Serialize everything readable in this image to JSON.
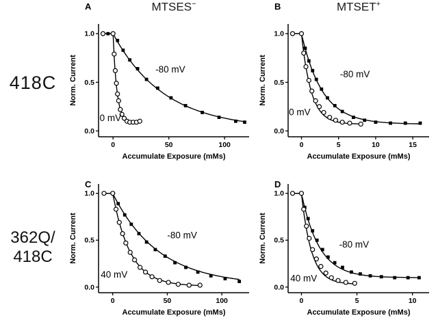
{
  "figure": {
    "row_labels": [
      {
        "text": "418C"
      },
      {
        "line1": "362Q/",
        "line2": "418C"
      }
    ]
  },
  "chart_data": [
    {
      "panel_letter": "A",
      "title": "MTSES",
      "title_sup": "−",
      "type": "scatter",
      "xlabel": "Accumulate Exposure (mMs)",
      "ylabel": "Norm. Current",
      "xlim": [
        -13,
        122
      ],
      "ylim": [
        -0.06,
        1.1
      ],
      "xticks": [
        0,
        50,
        100
      ],
      "yticks": [
        0,
        0.5,
        1
      ],
      "yticklabels": [
        "0.0",
        "0.5",
        "1.0"
      ],
      "grid": false,
      "series": [
        {
          "name": "-80 mV",
          "marker": "filled-square",
          "fit": {
            "tau": 46,
            "plateau": 0.02
          },
          "points": [
            [
              -9,
              1.0
            ],
            [
              -4.5,
              1.0
            ],
            [
              0,
              1.0
            ],
            [
              4,
              0.93
            ],
            [
              9,
              0.83
            ],
            [
              15,
              0.73
            ],
            [
              22,
              0.64
            ],
            [
              30,
              0.53
            ],
            [
              40,
              0.44
            ],
            [
              52,
              0.34
            ],
            [
              65,
              0.26
            ],
            [
              80,
              0.19
            ],
            [
              95,
              0.14
            ],
            [
              110,
              0.1
            ],
            [
              118,
              0.09
            ]
          ]
        },
        {
          "name": "0 mV",
          "marker": "open-circle",
          "fit": {
            "tau": 3.5,
            "plateau": 0.08
          },
          "points": [
            [
              -9,
              1.0
            ],
            [
              0,
              1.0
            ],
            [
              1,
              0.79
            ],
            [
              2,
              0.62
            ],
            [
              3,
              0.49
            ],
            [
              4,
              0.38
            ],
            [
              5,
              0.31
            ],
            [
              6.5,
              0.22
            ],
            [
              8,
              0.17
            ],
            [
              10,
              0.13
            ],
            [
              12.5,
              0.1
            ],
            [
              15,
              0.09
            ],
            [
              18,
              0.09
            ],
            [
              21,
              0.09
            ],
            [
              24,
              0.1
            ]
          ]
        }
      ],
      "annotations": [
        {
          "text": "-80 mV",
          "x": 38,
          "y": 0.6
        },
        {
          "text": "0 mV",
          "x": -12,
          "y": 0.1
        }
      ]
    },
    {
      "panel_letter": "B",
      "title": "MTSET",
      "title_sup": "+",
      "type": "scatter",
      "xlabel": "Accumulate Exposure (mMs)",
      "ylabel": "Norm. Current",
      "xlim": [
        -1.8,
        17.2
      ],
      "ylim": [
        -0.06,
        1.1
      ],
      "xticks": [
        0,
        5,
        10,
        15
      ],
      "yticks": [
        0,
        0.5,
        1
      ],
      "yticklabels": [
        "0.0",
        "0.5",
        "1.0"
      ],
      "grid": false,
      "series": [
        {
          "name": "-80 mV",
          "marker": "filled-square",
          "fit": {
            "tau": 2.8,
            "plateau": 0.07
          },
          "points": [
            [
              -1.2,
              1.0
            ],
            [
              0,
              1.0
            ],
            [
              0.5,
              0.85
            ],
            [
              1,
              0.72
            ],
            [
              1.5,
              0.62
            ],
            [
              2,
              0.53
            ],
            [
              2.7,
              0.43
            ],
            [
              3.5,
              0.34
            ],
            [
              4.5,
              0.26
            ],
            [
              5.5,
              0.2
            ],
            [
              7,
              0.14
            ],
            [
              8.5,
              0.11
            ],
            [
              10,
              0.09
            ],
            [
              12,
              0.08
            ],
            [
              14,
              0.08
            ],
            [
              16,
              0.08
            ]
          ]
        },
        {
          "name": "0 mV",
          "marker": "open-circle",
          "fit": {
            "tau": 1.3,
            "plateau": 0.07
          },
          "points": [
            [
              -1.2,
              1.0
            ],
            [
              0,
              1.0
            ],
            [
              0.3,
              0.8
            ],
            [
              0.6,
              0.66
            ],
            [
              1,
              0.52
            ],
            [
              1.4,
              0.41
            ],
            [
              1.9,
              0.31
            ],
            [
              2.4,
              0.25
            ],
            [
              3,
              0.19
            ],
            [
              3.8,
              0.14
            ],
            [
              4.6,
              0.11
            ],
            [
              5.5,
              0.09
            ],
            [
              6.5,
              0.08
            ],
            [
              8,
              0.07
            ]
          ]
        }
      ],
      "annotations": [
        {
          "text": "-80 mV",
          "x": 5.2,
          "y": 0.55
        },
        {
          "text": "0 mV",
          "x": -1.7,
          "y": 0.16
        }
      ]
    },
    {
      "panel_letter": "C",
      "title": "",
      "title_sup": "",
      "type": "scatter",
      "xlabel": "Accumulate Exposure (mMs)",
      "ylabel": "Norm. Current",
      "xlim": [
        -13,
        125
      ],
      "ylim": [
        -0.06,
        1.1
      ],
      "xticks": [
        0,
        50,
        100
      ],
      "yticks": [
        0,
        0.5,
        1
      ],
      "yticklabels": [
        "0.0",
        "0.5",
        "1.0"
      ],
      "grid": false,
      "series": [
        {
          "name": "-80 mV",
          "marker": "filled-square",
          "fit": {
            "tau": 42,
            "plateau": 0.02
          },
          "points": [
            [
              -8,
              1.0
            ],
            [
              0,
              1.0
            ],
            [
              5,
              0.89
            ],
            [
              11,
              0.77
            ],
            [
              17,
              0.67
            ],
            [
              24,
              0.57
            ],
            [
              31,
              0.48
            ],
            [
              39,
              0.4
            ],
            [
              48,
              0.33
            ],
            [
              57,
              0.26
            ],
            [
              67,
              0.21
            ],
            [
              78,
              0.16
            ],
            [
              90,
              0.12
            ],
            [
              103,
              0.09
            ],
            [
              116,
              0.06
            ]
          ]
        },
        {
          "name": "40 mV",
          "marker": "open-circle",
          "fit": {
            "tau": 16,
            "plateau": 0.01
          },
          "points": [
            [
              -8,
              1.0
            ],
            [
              0,
              1.0
            ],
            [
              3,
              0.83
            ],
            [
              6,
              0.69
            ],
            [
              9,
              0.57
            ],
            [
              12,
              0.47
            ],
            [
              16,
              0.37
            ],
            [
              20,
              0.29
            ],
            [
              25,
              0.21
            ],
            [
              30,
              0.16
            ],
            [
              36,
              0.11
            ],
            [
              43,
              0.07
            ],
            [
              51,
              0.05
            ],
            [
              60,
              0.03
            ],
            [
              70,
              0.02
            ],
            [
              80,
              0.02
            ]
          ]
        }
      ],
      "annotations": [
        {
          "text": "-80 mV",
          "x": 50,
          "y": 0.52
        },
        {
          "text": "40 mV",
          "x": -11,
          "y": 0.1
        }
      ]
    },
    {
      "panel_letter": "D",
      "title": "",
      "title_sup": "",
      "type": "scatter",
      "xlabel": "Accumulate Exposure (mMs)",
      "ylabel": "Norm. Current",
      "xlim": [
        -1.2,
        11.5
      ],
      "ylim": [
        -0.06,
        1.1
      ],
      "xticks": [
        0,
        5,
        10
      ],
      "yticks": [
        0,
        0.5,
        1
      ],
      "yticklabels": [
        "0.0",
        "0.5",
        "1.0"
      ],
      "grid": false,
      "series": [
        {
          "name": "-80 mV",
          "marker": "filled-square",
          "fit": {
            "tau": 1.6,
            "plateau": 0.1
          },
          "points": [
            [
              -0.8,
              1.0
            ],
            [
              0,
              1.0
            ],
            [
              0.3,
              0.85
            ],
            [
              0.6,
              0.73
            ],
            [
              1,
              0.6
            ],
            [
              1.4,
              0.5
            ],
            [
              1.9,
              0.4
            ],
            [
              2.4,
              0.32
            ],
            [
              3,
              0.26
            ],
            [
              3.7,
              0.21
            ],
            [
              4.5,
              0.16
            ],
            [
              5.3,
              0.14
            ],
            [
              6.2,
              0.12
            ],
            [
              7.2,
              0.11
            ],
            [
              8.4,
              0.1
            ],
            [
              9.6,
              0.1
            ],
            [
              10.6,
              0.1
            ]
          ]
        },
        {
          "name": "40 mV",
          "marker": "open-circle",
          "fit": {
            "tau": 0.9,
            "plateau": 0.03
          },
          "points": [
            [
              -0.8,
              1.0
            ],
            [
              0,
              1.0
            ],
            [
              0.2,
              0.83
            ],
            [
              0.45,
              0.65
            ],
            [
              0.7,
              0.52
            ],
            [
              1,
              0.4
            ],
            [
              1.35,
              0.3
            ],
            [
              1.75,
              0.22
            ],
            [
              2.2,
              0.15
            ],
            [
              2.7,
              0.1
            ],
            [
              3.3,
              0.07
            ],
            [
              4,
              0.05
            ],
            [
              4.8,
              0.04
            ]
          ]
        }
      ],
      "annotations": [
        {
          "text": "-80 mV",
          "x": 3.4,
          "y": 0.42
        },
        {
          "text": "40 mV",
          "x": -1.0,
          "y": 0.06
        }
      ]
    }
  ]
}
